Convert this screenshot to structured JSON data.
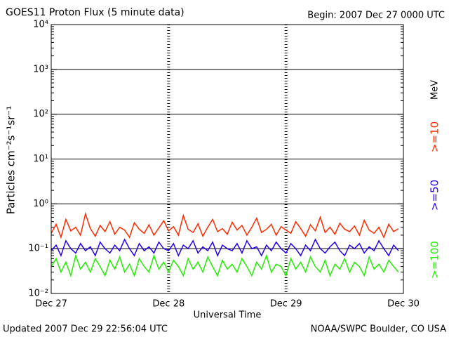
{
  "chart_data": {
    "type": "line",
    "title": "GOES11 Proton Flux (5 minute data)",
    "subtitle": "Begin: 2007 Dec 27 0000 UTC",
    "y_label": "Particles cm⁻²s⁻¹sr⁻¹",
    "x_label": "Universal Time",
    "legend_unit": "MeV",
    "footer_left": "Updated 2007 Dec 29 22:56:04 UTC",
    "footer_right": "NOAA/SWPC Boulder, CO USA",
    "log_scale": true,
    "grid": true,
    "xticks": [
      "Dec 27",
      "Dec 28",
      "Dec 29",
      "Dec 30"
    ],
    "ylim": [
      0.01,
      10000
    ],
    "yticks": [
      {
        "value": 0.01,
        "label": "10⁻²"
      },
      {
        "value": 0.1,
        "label": "10⁻¹"
      },
      {
        "value": 1,
        "label": "10⁰"
      },
      {
        "value": 10,
        "label": "10¹"
      },
      {
        "value": 100,
        "label": "10²"
      },
      {
        "value": 1000,
        "label": "10³"
      },
      {
        "value": 10000,
        "label": "10⁴"
      }
    ],
    "slots": 72,
    "series": [
      {
        "name": ">=10",
        "color": "#ff2a00",
        "values": [
          0.22,
          0.35,
          0.18,
          0.45,
          0.25,
          0.3,
          0.2,
          0.6,
          0.28,
          0.19,
          0.33,
          0.24,
          0.4,
          0.21,
          0.3,
          0.26,
          0.18,
          0.38,
          0.27,
          0.22,
          0.34,
          0.2,
          0.29,
          0.42,
          0.25,
          0.31,
          0.2,
          0.55,
          0.27,
          0.23,
          0.36,
          0.19,
          0.3,
          0.45,
          0.24,
          0.28,
          0.21,
          0.39,
          0.26,
          0.33,
          0.2,
          0.3,
          0.48,
          0.23,
          0.27,
          0.35,
          0.2,
          0.31,
          0.26,
          0.22,
          0.4,
          0.28,
          0.19,
          0.34,
          0.25,
          0.5,
          0.23,
          0.3,
          0.21,
          0.37,
          0.27,
          0.24,
          0.32,
          0.2,
          0.43,
          0.26,
          0.22,
          0.3,
          0.18,
          0.35,
          0.24,
          0.28
        ]
      },
      {
        "name": ">=50",
        "color": "#2200ee",
        "values": [
          0.09,
          0.12,
          0.07,
          0.15,
          0.1,
          0.08,
          0.13,
          0.09,
          0.11,
          0.07,
          0.14,
          0.1,
          0.08,
          0.12,
          0.09,
          0.16,
          0.1,
          0.07,
          0.13,
          0.09,
          0.11,
          0.08,
          0.14,
          0.1,
          0.09,
          0.13,
          0.07,
          0.12,
          0.1,
          0.15,
          0.08,
          0.11,
          0.09,
          0.14,
          0.07,
          0.12,
          0.1,
          0.09,
          0.13,
          0.08,
          0.15,
          0.1,
          0.11,
          0.07,
          0.12,
          0.09,
          0.14,
          0.1,
          0.08,
          0.13,
          0.1,
          0.07,
          0.12,
          0.09,
          0.16,
          0.1,
          0.08,
          0.11,
          0.14,
          0.09,
          0.07,
          0.12,
          0.1,
          0.13,
          0.08,
          0.11,
          0.09,
          0.15,
          0.1,
          0.07,
          0.12,
          0.09
        ]
      },
      {
        "name": ">=100",
        "color": "#22ee00",
        "values": [
          0.04,
          0.06,
          0.03,
          0.05,
          0.025,
          0.07,
          0.035,
          0.05,
          0.03,
          0.06,
          0.04,
          0.025,
          0.055,
          0.035,
          0.065,
          0.03,
          0.045,
          0.025,
          0.06,
          0.04,
          0.03,
          0.07,
          0.035,
          0.05,
          0.03,
          0.055,
          0.04,
          0.025,
          0.06,
          0.035,
          0.05,
          0.03,
          0.065,
          0.04,
          0.025,
          0.055,
          0.035,
          0.045,
          0.03,
          0.06,
          0.04,
          0.025,
          0.05,
          0.035,
          0.07,
          0.03,
          0.045,
          0.04,
          0.025,
          0.06,
          0.035,
          0.05,
          0.03,
          0.065,
          0.04,
          0.03,
          0.055,
          0.025,
          0.045,
          0.035,
          0.06,
          0.03,
          0.05,
          0.04,
          0.025,
          0.065,
          0.035,
          0.045,
          0.03,
          0.055,
          0.04,
          0.03
        ]
      }
    ]
  }
}
